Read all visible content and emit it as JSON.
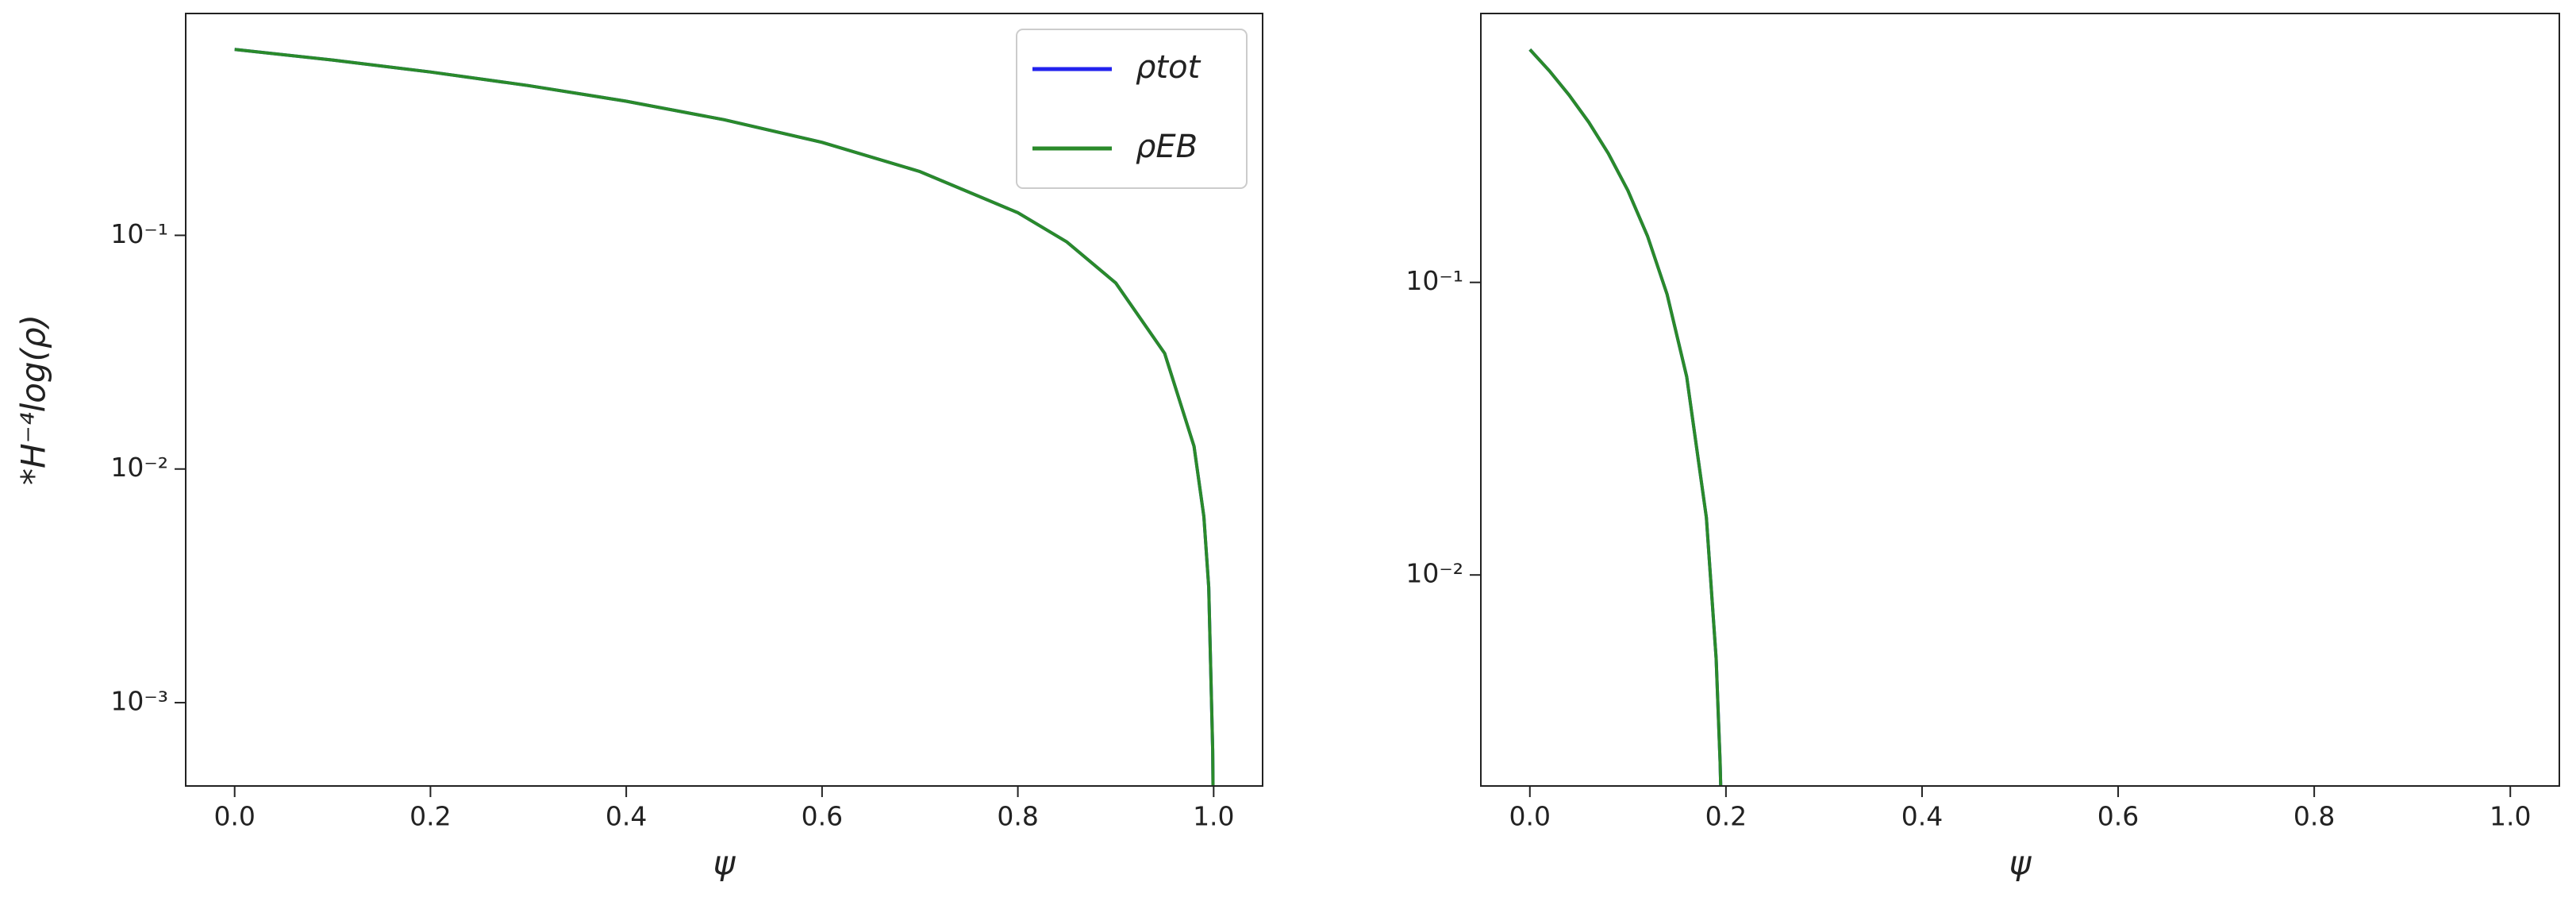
{
  "chart_data": [
    {
      "type": "line",
      "log_y": true,
      "ylabel": "*H⁻⁴log(ρ)",
      "xlabel": "ψ",
      "legend": "upper right",
      "xlim": [
        -0.05,
        1.05
      ],
      "ylim": [
        0.00044,
        0.89
      ],
      "xticks": [
        {
          "value": 0,
          "label": "0.0"
        },
        0.2,
        0.4,
        0.6,
        0.8,
        {
          "value": 1,
          "label": "1.0"
        }
      ],
      "yticks": [
        {
          "value": 0.001,
          "label": "10⁻³"
        },
        {
          "value": 0.01,
          "label": "10⁻²"
        },
        {
          "value": 0.1,
          "label": "10⁻¹"
        }
      ],
      "x": [
        0,
        0.1,
        0.2,
        0.3,
        0.4,
        0.5,
        0.6,
        0.7,
        0.8,
        0.85,
        0.9,
        0.95,
        0.98,
        0.99,
        0.995,
        0.999,
        0.9993
      ],
      "series": [
        {
          "name": "ρtot",
          "color": "#2222ee",
          "values": [
            0.625,
            0.5625,
            0.5,
            0.4375,
            0.375,
            0.3125,
            0.25,
            0.1875,
            0.125,
            0.09375,
            0.0625,
            0.03125,
            0.0125,
            0.00625,
            0.003125,
            0.000625,
            0.00044
          ]
        },
        {
          "name": "ρEB",
          "color": "#2a8a2a",
          "values": [
            0.625,
            0.5625,
            0.5,
            0.4375,
            0.375,
            0.3125,
            0.25,
            0.1875,
            0.125,
            0.09375,
            0.0625,
            0.03125,
            0.0125,
            0.00625,
            0.003125,
            0.000625,
            0.00044
          ]
        }
      ]
    },
    {
      "type": "line",
      "log_y": true,
      "xlabel": "ψ",
      "xlim": [
        -0.05,
        1.05
      ],
      "ylim": [
        0.0019,
        0.83
      ],
      "xticks": [
        {
          "value": 0,
          "label": "0.0"
        },
        0.2,
        0.4,
        0.6,
        0.8,
        {
          "value": 1,
          "label": "1.0"
        }
      ],
      "yticks": [
        {
          "value": 0.01,
          "label": "10⁻²"
        },
        {
          "value": 0.1,
          "label": "10⁻¹"
        }
      ],
      "x": [
        0,
        0.02,
        0.04,
        0.06,
        0.08,
        0.1,
        0.12,
        0.14,
        0.16,
        0.18,
        0.19,
        0.194,
        0.195
      ],
      "series": [
        {
          "color": "#2222ee",
          "values": [
            0.625,
            0.528,
            0.437,
            0.353,
            0.276,
            0.206,
            0.144,
            0.091,
            0.0476,
            0.0157,
            0.00518,
            0.00229,
            0.0017
          ]
        },
        {
          "color": "#2a8a2a",
          "values": [
            0.625,
            0.528,
            0.437,
            0.353,
            0.276,
            0.206,
            0.144,
            0.091,
            0.0476,
            0.0157,
            0.00518,
            0.00229,
            0.0017
          ]
        }
      ]
    }
  ]
}
